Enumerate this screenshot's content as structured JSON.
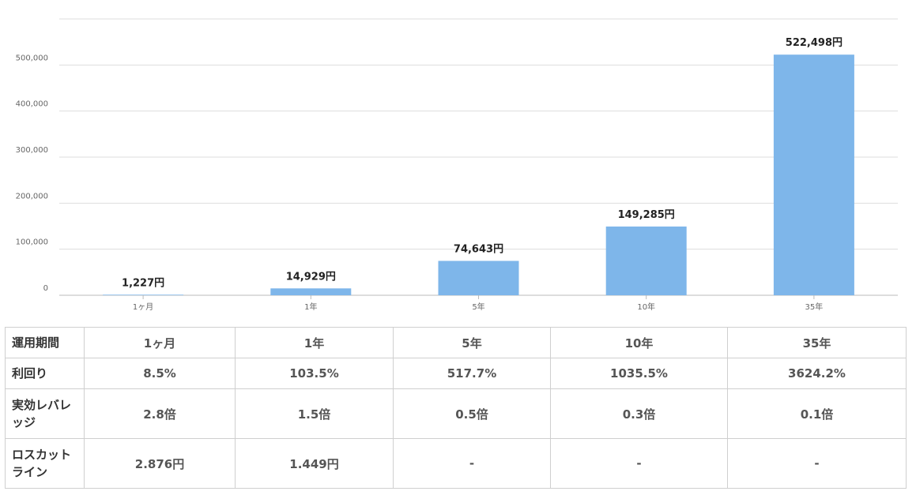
{
  "chart_data": {
    "type": "bar",
    "categories": [
      "1ヶ月",
      "1年",
      "5年",
      "10年",
      "35年"
    ],
    "values": [
      1227,
      14929,
      74643,
      149285,
      522498
    ],
    "data_labels": [
      "1,227円",
      "14,929円",
      "74,643円",
      "149,285円",
      "522,498円"
    ],
    "ylim": [
      0,
      600000
    ],
    "yticks": [
      "0",
      "100,000",
      "200,000",
      "300,000",
      "400,000",
      "500,000"
    ],
    "ytick_values": [
      0,
      100000,
      200000,
      300000,
      400000,
      500000
    ],
    "bar_color": "#7eb6ea",
    "grid": true
  },
  "table": {
    "header": [
      "運用期間",
      "1ヶ月",
      "1年",
      "5年",
      "10年",
      "35年"
    ],
    "rows": [
      [
        "利回り",
        "8.5%",
        "103.5%",
        "517.7%",
        "1035.5%",
        "3624.2%"
      ],
      [
        "実効レバレッジ",
        "2.8倍",
        "1.5倍",
        "0.5倍",
        "0.3倍",
        "0.1倍"
      ],
      [
        "ロスカットライン",
        "2.876円",
        "1.449円",
        "-",
        "-",
        "-"
      ]
    ]
  }
}
